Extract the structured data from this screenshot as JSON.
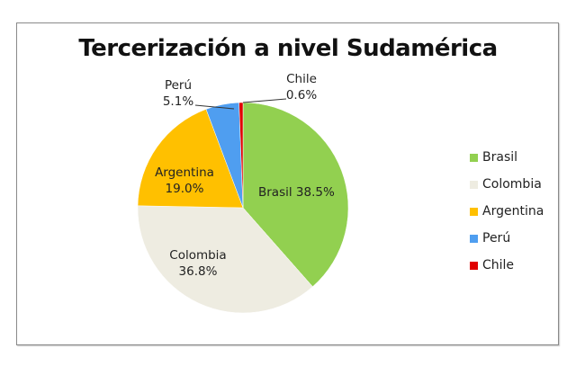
{
  "chart_data": {
    "type": "pie",
    "title": "Tercerización a nivel Sudamérica",
    "categories": [
      "Brasil",
      "Colombia",
      "Argentina",
      "Perú",
      "Chile"
    ],
    "values": [
      38.5,
      36.8,
      19.0,
      5.1,
      0.6
    ],
    "unit": "%",
    "colors": [
      "#92d050",
      "#eeece1",
      "#ffc000",
      "#4f9ef0",
      "#e00000"
    ],
    "data_labels": [
      "Brasil 38.5%",
      "Colombia 36.8%",
      "Argentina 19.0%",
      "Perú 5.1%",
      "Chile 0.6%"
    ],
    "legend_position": "right"
  },
  "labels": {
    "brasil": "Brasil 38.5%",
    "colombia_name": "Colombia",
    "colombia_value": "36.8%",
    "argentina_name": "Argentina",
    "argentina_value": "19.0%",
    "peru_name": "Perú",
    "peru_value": "5.1%",
    "chile_name": "Chile",
    "chile_value": "0.6%"
  },
  "legend": {
    "items": [
      {
        "label": "Brasil",
        "color": "#92d050"
      },
      {
        "label": "Colombia",
        "color": "#eeece1"
      },
      {
        "label": "Argentina",
        "color": "#ffc000"
      },
      {
        "label": "Perú",
        "color": "#4f9ef0"
      },
      {
        "label": "Chile",
        "color": "#e00000"
      }
    ]
  }
}
